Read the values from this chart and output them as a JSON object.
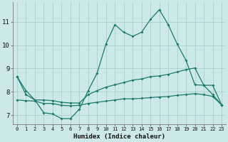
{
  "xlabel": "Humidex (Indice chaleur)",
  "bg_color": "#cce8e8",
  "grid_color": "#aacfcf",
  "line_color": "#1a7a6e",
  "x": [
    0,
    1,
    2,
    3,
    4,
    5,
    6,
    7,
    8,
    9,
    10,
    11,
    12,
    13,
    14,
    15,
    16,
    17,
    18,
    19,
    20,
    21,
    22,
    23
  ],
  "line1": [
    8.65,
    8.05,
    7.65,
    7.1,
    7.05,
    6.85,
    6.85,
    7.25,
    8.05,
    8.8,
    10.05,
    10.88,
    10.55,
    10.38,
    10.55,
    11.1,
    11.52,
    10.88,
    10.05,
    9.35,
    8.3,
    8.28,
    7.88,
    7.44
  ],
  "line2": [
    8.65,
    7.88,
    7.65,
    7.65,
    7.62,
    7.55,
    7.52,
    7.52,
    7.88,
    8.05,
    8.2,
    8.3,
    8.4,
    8.5,
    8.55,
    8.65,
    8.68,
    8.75,
    8.85,
    8.95,
    9.02,
    8.28,
    8.28,
    7.44
  ],
  "line3": [
    7.65,
    7.62,
    7.6,
    7.5,
    7.5,
    7.42,
    7.4,
    7.42,
    7.5,
    7.55,
    7.6,
    7.65,
    7.7,
    7.7,
    7.72,
    7.75,
    7.78,
    7.8,
    7.85,
    7.88,
    7.92,
    7.88,
    7.8,
    7.44
  ],
  "ylim": [
    6.6,
    11.85
  ],
  "yticks": [
    7,
    8,
    9,
    10,
    11
  ],
  "marker_size": 2.0,
  "line_width": 0.9
}
